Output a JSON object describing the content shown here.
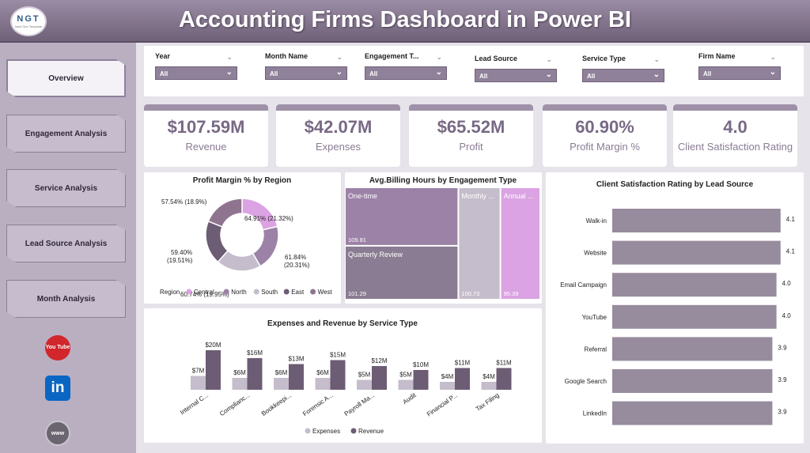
{
  "header": {
    "title": "Accounting Firms Dashboard in Power BI",
    "logo_text": "NGT",
    "logo_sub": "Next Gen Template"
  },
  "sidebar": {
    "items": [
      {
        "label": "Overview",
        "active": true
      },
      {
        "label": "Engagement Analysis"
      },
      {
        "label": "Service Analysis"
      },
      {
        "label": "Lead Source Analysis"
      },
      {
        "label": "Month Analysis"
      }
    ],
    "social": [
      {
        "icon": "youtube-icon",
        "label": "You Tube",
        "color": "#d1262b"
      },
      {
        "icon": "linkedin-icon",
        "label": "in",
        "color": "#0a66c2"
      },
      {
        "icon": "globe-icon",
        "label": "www",
        "color": "#6b6570"
      }
    ]
  },
  "filters": [
    {
      "label": "Year",
      "value": "All"
    },
    {
      "label": "Month Name",
      "value": "All"
    },
    {
      "label": "Engagement T...",
      "value": "All"
    },
    {
      "label": "Lead Source",
      "value": "All"
    },
    {
      "label": "Service Type",
      "value": "All"
    },
    {
      "label": "Firm Name",
      "value": "All"
    }
  ],
  "kpis": [
    {
      "value": "$107.59M",
      "label": "Revenue"
    },
    {
      "value": "$42.07M",
      "label": "Expenses"
    },
    {
      "value": "$65.52M",
      "label": "Profit"
    },
    {
      "value": "60.90%",
      "label": "Profit Margin %"
    },
    {
      "value": "4.0",
      "label": "Client Satisfaction Rating"
    }
  ],
  "colors": {
    "accent": "#786985",
    "central": "#dba3e3",
    "north": "#9c82a7",
    "south": "#c5bdcb",
    "east": "#6c5c74",
    "west": "#8f748f"
  },
  "chart_data": [
    {
      "type": "pie",
      "title": "Profit Margin % by Region",
      "legend_title": "Region",
      "slices": [
        {
          "name": "Central",
          "value": 64.91,
          "share": 21.32,
          "label": "64.91% (21.32%)",
          "color": "#dba3e3"
        },
        {
          "name": "North",
          "value": 61.84,
          "share": 20.31,
          "label": "61.84% (20.31%)",
          "color": "#9c82a7"
        },
        {
          "name": "South",
          "value": 60.74,
          "share": 19.95,
          "label": "60.74% (19.95%)",
          "color": "#c5bdcb"
        },
        {
          "name": "East",
          "value": 59.4,
          "share": 19.51,
          "label": "59.40% (19.51%)",
          "color": "#6c5c74"
        },
        {
          "name": "West",
          "value": 57.54,
          "share": 18.9,
          "label": "57.54% (18.9%)",
          "color": "#8f748f"
        }
      ]
    },
    {
      "type": "treemap",
      "title": "Avg.Billing Hours by Engagement Type",
      "items": [
        {
          "name": "One-time",
          "value": 109.81,
          "label": "109.81",
          "color": "#9c82a7"
        },
        {
          "name": "Quarterly Review",
          "value": 101.29,
          "label": "101.29",
          "color": "#8a7c92"
        },
        {
          "name": "Monthly ...",
          "value": 100.73,
          "label": "100.73",
          "color": "#c5bdcb"
        },
        {
          "name": "Annual ...",
          "value": 95.39,
          "label": "95.39",
          "color": "#dba3e3"
        }
      ]
    },
    {
      "type": "bar",
      "title": "Client Satisfaction Rating by Lead Source",
      "xlim": [
        0,
        4.2
      ],
      "categories": [
        "Walk-in",
        "Website",
        "Email Campaign",
        "YouTube",
        "Referral",
        "Google Search",
        "LinkedIn"
      ],
      "values": [
        4.1,
        4.1,
        4.0,
        4.0,
        3.9,
        3.9,
        3.9
      ],
      "labels": [
        "4.1",
        "4.1",
        "4.0",
        "4.0",
        "3.9",
        "3.9",
        "3.9"
      ],
      "color": "#978b9e"
    },
    {
      "type": "bar",
      "title": "Expenses and Revenue by Service Type",
      "ylim": [
        0,
        20
      ],
      "categories": [
        "Internal C...",
        "Complianc...",
        "Bookkeepi...",
        "Forensic A...",
        "Payroll Ma...",
        "Audit",
        "Financial P...",
        "Tax Filing"
      ],
      "series": [
        {
          "name": "Expenses",
          "values": [
            7,
            6,
            6,
            6,
            5,
            5,
            4,
            4
          ],
          "labels": [
            "$7M",
            "$6M",
            "$6M",
            "$6M",
            "$5M",
            "$5M",
            "$4M",
            "$4M"
          ],
          "color": "#c5bdcb"
        },
        {
          "name": "Revenue",
          "values": [
            20,
            16,
            13,
            15,
            12,
            10,
            11,
            11
          ],
          "labels": [
            "$20M",
            "$16M",
            "$13M",
            "$15M",
            "$12M",
            "$10M",
            "$11M",
            "$11M"
          ],
          "color": "#6c5c74"
        }
      ]
    }
  ]
}
